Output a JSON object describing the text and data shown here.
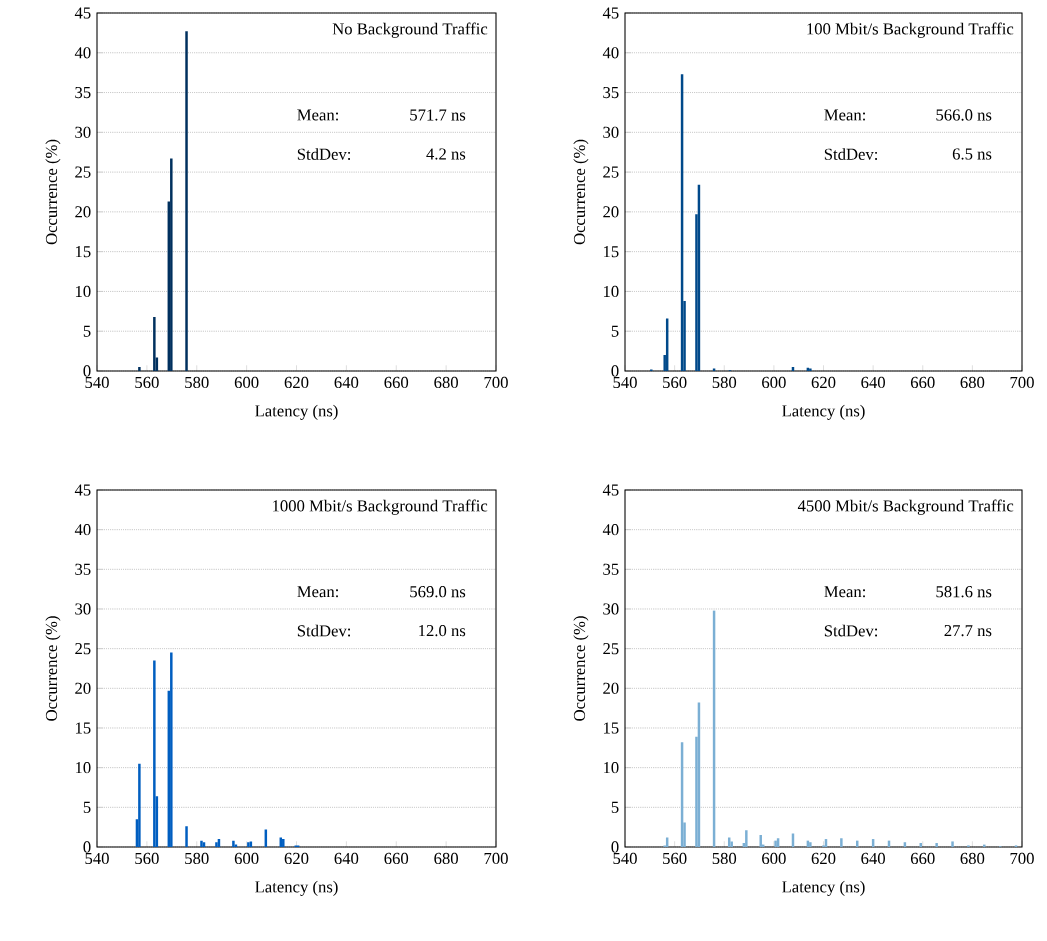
{
  "chart_data": [
    {
      "type": "bar",
      "xlabel": "Latency (ns)",
      "ylabel": "Occurrence (%)",
      "xlim": [
        540,
        700
      ],
      "ylim": [
        0,
        45
      ],
      "xticks": [
        540,
        560,
        580,
        600,
        620,
        640,
        660,
        680,
        700
      ],
      "yticks": [
        0,
        5,
        10,
        15,
        20,
        25,
        30,
        35,
        40,
        45
      ],
      "grid": "y",
      "legend": "top right",
      "annotations": [
        "Mean:",
        "571.7 ns",
        "StdDev:",
        "4.2 ns"
      ],
      "x": [
        557.0,
        563.0,
        564.0,
        568.8,
        569.8,
        575.9
      ],
      "series": [
        {
          "name": "No Background Traffic",
          "color": "#00305e",
          "values": [
            0.5,
            6.8,
            1.7,
            21.3,
            26.7,
            42.7
          ]
        }
      ]
    },
    {
      "type": "bar",
      "xlabel": "Latency (ns)",
      "ylabel": "Occurrence (%)",
      "xlim": [
        540,
        700
      ],
      "ylim": [
        0,
        45
      ],
      "xticks": [
        540,
        560,
        580,
        600,
        620,
        640,
        660,
        680,
        700
      ],
      "yticks": [
        0,
        5,
        10,
        15,
        20,
        25,
        30,
        35,
        40,
        45
      ],
      "grid": "y",
      "legend": "top right",
      "annotations": [
        "Mean:",
        "566.0 ns",
        "StdDev:",
        "6.5 ns"
      ],
      "x": [
        550.6,
        556.0,
        557.0,
        563.0,
        564.0,
        568.8,
        569.8,
        575.9,
        582.3,
        607.7,
        613.7,
        614.7
      ],
      "series": [
        {
          "name": "100 Mbit/s Background Traffic",
          "color": "#00498a",
          "values": [
            0.2,
            2.0,
            6.6,
            37.3,
            8.8,
            19.7,
            23.4,
            0.3,
            0.1,
            0.5,
            0.4,
            0.3
          ]
        }
      ]
    },
    {
      "type": "bar",
      "xlabel": "Latency (ns)",
      "ylabel": "Occurrence (%)",
      "xlim": [
        540,
        700
      ],
      "ylim": [
        0,
        45
      ],
      "xticks": [
        540,
        560,
        580,
        600,
        620,
        640,
        660,
        680,
        700
      ],
      "yticks": [
        0,
        5,
        10,
        15,
        20,
        25,
        30,
        35,
        40,
        45
      ],
      "grid": "y",
      "legend": "top right",
      "annotations": [
        "Mean:",
        "569.0 ns",
        "StdDev:",
        "12.0 ns"
      ],
      "x": [
        556.0,
        557.0,
        563.0,
        564.0,
        568.8,
        569.8,
        575.9,
        581.9,
        582.9,
        587.9,
        588.9,
        594.7,
        595.7,
        600.7,
        601.7,
        607.7,
        613.7,
        614.7,
        619.7,
        620.7
      ],
      "series": [
        {
          "name": "1000 Mbit/s Background Traffic",
          "color": "#005ec0",
          "values": [
            3.5,
            10.5,
            23.5,
            6.4,
            19.7,
            24.5,
            2.6,
            0.8,
            0.6,
            0.6,
            1.0,
            0.8,
            0.3,
            0.6,
            0.7,
            2.2,
            1.2,
            1.0,
            0.2,
            0.2
          ]
        }
      ]
    },
    {
      "type": "bar",
      "xlabel": "Latency (ns)",
      "ylabel": "Occurrence (%)",
      "xlim": [
        540,
        700
      ],
      "ylim": [
        0,
        45
      ],
      "xticks": [
        540,
        560,
        580,
        600,
        620,
        640,
        660,
        680,
        700
      ],
      "yticks": [
        0,
        5,
        10,
        15,
        20,
        25,
        30,
        35,
        40,
        45
      ],
      "grid": "y",
      "legend": "top right",
      "annotations": [
        "Mean:",
        "581.6 ns",
        "StdDev:",
        "27.7 ns"
      ],
      "x": [
        556.0,
        557.0,
        563.0,
        564.0,
        568.8,
        569.8,
        575.9,
        582.0,
        583.0,
        587.9,
        588.9,
        594.7,
        595.7,
        600.7,
        601.7,
        607.7,
        613.7,
        614.7,
        620.0,
        621.0,
        627.2,
        633.6,
        640.0,
        646.4,
        652.8,
        659.2,
        665.6,
        672.0,
        678.4,
        684.8,
        691.2,
        697.6
      ],
      "series": [
        {
          "name": "4500 Mbit/s Background Traffic",
          "color": "#7bafd4",
          "values": [
            0.2,
            1.2,
            13.2,
            3.1,
            13.9,
            18.2,
            29.8,
            1.2,
            0.7,
            0.5,
            2.1,
            1.5,
            0.3,
            0.8,
            1.1,
            1.7,
            0.8,
            0.6,
            0.2,
            1.0,
            1.1,
            0.8,
            1.0,
            0.8,
            0.6,
            0.5,
            0.5,
            0.7,
            0.2,
            0.3,
            0.1,
            0.2
          ]
        }
      ]
    }
  ]
}
